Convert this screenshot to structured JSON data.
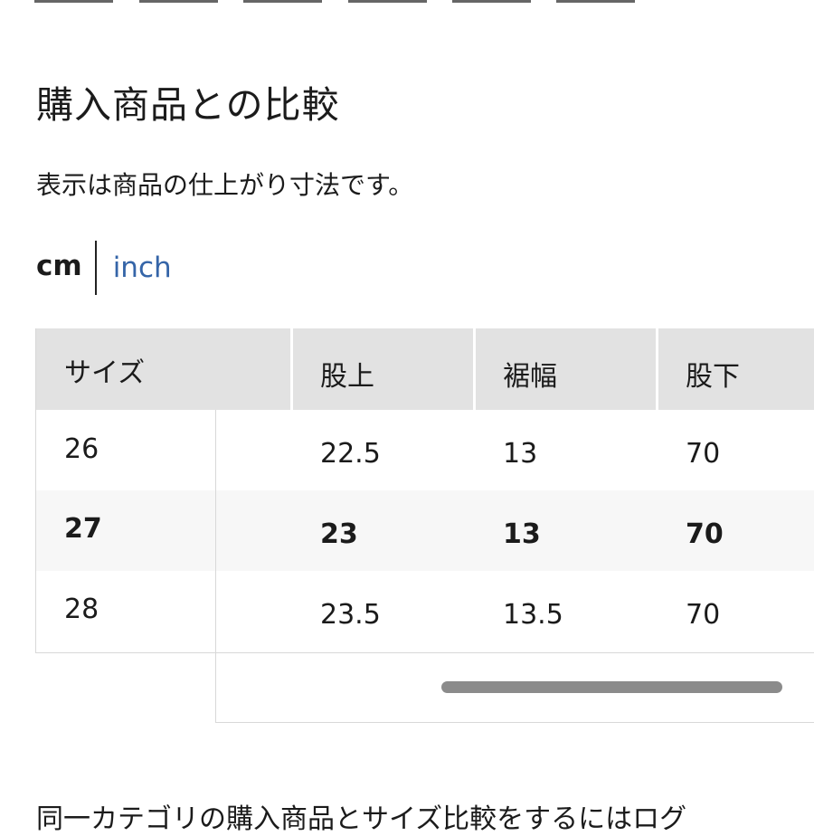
{
  "tabs_count": 6,
  "title": "購入商品との比較",
  "note": "表示は商品の仕上がり寸法です。",
  "units": {
    "cm": "cm",
    "inch": "inch",
    "selected": "cm"
  },
  "table": {
    "headers": [
      "サイズ",
      "股上",
      "裾幅",
      "股下"
    ],
    "rows": [
      {
        "cells": [
          "26",
          "22.5",
          "13",
          "70"
        ],
        "highlight": false
      },
      {
        "cells": [
          "27",
          "23",
          "13",
          "70"
        ],
        "highlight": true
      },
      {
        "cells": [
          "28",
          "23.5",
          "13.5",
          "70"
        ],
        "highlight": false
      }
    ]
  },
  "bottom_text": "同一カテゴリの購入商品とサイズ比較をするにはログ"
}
